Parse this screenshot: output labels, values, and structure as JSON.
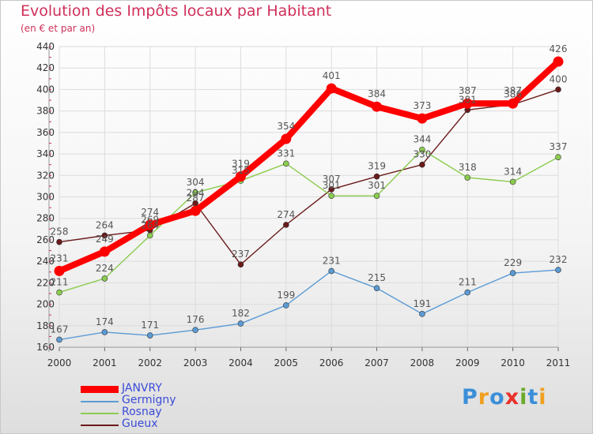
{
  "header": {
    "title": "Evolution des Impôts locaux par Habitant",
    "subtitle": "(en € et par an)"
  },
  "logo": {
    "text": "Proxiti",
    "colors": [
      "#3b8fd8",
      "#f0a020",
      "#3b8fd8",
      "#e8302a",
      "#6aaa2a",
      "#3b8fd8",
      "#f0a020"
    ]
  },
  "chart_data": {
    "type": "line",
    "title": "Evolution des Impôts locaux par Habitant",
    "subtitle": "(en € et par an)",
    "xlabel": "",
    "ylabel": "",
    "x": [
      "2000",
      "2001",
      "2002",
      "2003",
      "2004",
      "2005",
      "2006",
      "2007",
      "2008",
      "2009",
      "2010",
      "2011"
    ],
    "ylim": [
      160,
      440
    ],
    "yticks": [
      160,
      180,
      200,
      220,
      240,
      260,
      280,
      300,
      320,
      340,
      360,
      380,
      400,
      420,
      440
    ],
    "grid": true,
    "legend_position": "bottom-left",
    "series": [
      {
        "name": "Gueux",
        "color": "#6b1a1a",
        "values": [
          258,
          264,
          269,
          294,
          237,
          274,
          307,
          319,
          330,
          381,
          386,
          400
        ],
        "labels": [
          "258",
          "264",
          "269",
          "294",
          "237",
          "274",
          "307",
          "319",
          "330",
          "381",
          "386",
          "400"
        ]
      },
      {
        "name": "Rosnay",
        "color": "#8ccc50",
        "values": [
          211,
          224,
          264,
          304,
          315,
          331,
          301,
          301,
          344,
          318,
          314,
          337
        ],
        "labels": [
          "211",
          "224",
          "264",
          "304",
          "315",
          "331",
          "301",
          "301",
          "344",
          "318",
          "314",
          "337"
        ]
      },
      {
        "name": "Germigny",
        "color": "#5b9bd5",
        "values": [
          167,
          174,
          171,
          176,
          182,
          199,
          231,
          215,
          191,
          211,
          229,
          232
        ],
        "labels": [
          "167",
          "174",
          "171",
          "176",
          "182",
          "199",
          "231",
          "215",
          "191",
          "211",
          "229",
          "232"
        ]
      },
      {
        "name": "JANVRY",
        "color": "#ff0000",
        "values": [
          231,
          249,
          274,
          287,
          319,
          354,
          401,
          384,
          373,
          387,
          387,
          426
        ],
        "labels": [
          "231",
          "249",
          "274",
          "287",
          "319",
          "354",
          "401",
          "384",
          "373",
          "387",
          "387",
          "426"
        ]
      }
    ]
  }
}
